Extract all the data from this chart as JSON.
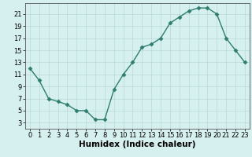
{
  "x": [
    0,
    1,
    2,
    3,
    4,
    5,
    6,
    7,
    8,
    9,
    10,
    11,
    12,
    13,
    14,
    15,
    16,
    17,
    18,
    19,
    20,
    21,
    22,
    23
  ],
  "y": [
    12,
    10,
    7,
    6.5,
    6,
    5,
    5,
    3.5,
    3.5,
    8.5,
    11,
    13,
    15.5,
    16,
    17,
    19.5,
    20.5,
    21.5,
    22,
    22,
    21,
    17,
    15,
    13
  ],
  "line_color": "#2e7d6e",
  "marker": "D",
  "marker_size": 2.5,
  "bg_color": "#d6f0ef",
  "grid_color": "#b8d8d5",
  "xlabel": "Humidex (Indice chaleur)",
  "xlim": [
    -0.5,
    23.5
  ],
  "ylim": [
    2,
    22.8
  ],
  "yticks": [
    3,
    5,
    7,
    9,
    11,
    13,
    15,
    17,
    19,
    21
  ],
  "xticks": [
    0,
    1,
    2,
    3,
    4,
    5,
    6,
    7,
    8,
    9,
    10,
    11,
    12,
    13,
    14,
    15,
    16,
    17,
    18,
    19,
    20,
    21,
    22,
    23
  ],
  "tick_labelsize": 6,
  "xlabel_fontsize": 7.5
}
